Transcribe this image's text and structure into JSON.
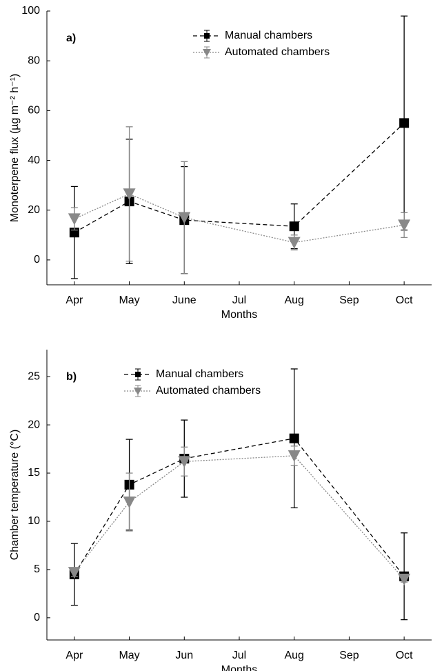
{
  "chart_data": [
    {
      "type": "line",
      "panel_label": "a)",
      "xlabel": "Months",
      "ylabel": "Monoterpene flux (µg m⁻² h⁻¹)",
      "x": [
        4,
        5,
        6,
        8,
        10
      ],
      "xlim": [
        3.5,
        10.5
      ],
      "xticks": [
        {
          "value": 4,
          "label": "Apr"
        },
        {
          "value": 5,
          "label": "May"
        },
        {
          "value": 6,
          "label": "June"
        },
        {
          "value": 7,
          "label": "Jul"
        },
        {
          "value": 8,
          "label": "Aug"
        },
        {
          "value": 9,
          "label": "Sep"
        },
        {
          "value": 10,
          "label": "Oct"
        }
      ],
      "ylim": [
        -10,
        100
      ],
      "yticks": [
        0,
        20,
        40,
        60,
        80,
        100
      ],
      "legend": "upper center",
      "series": [
        {
          "name": "Manual chambers",
          "color": "#000000",
          "linestyle": "dashed",
          "marker": "square",
          "values": [
            11,
            23.5,
            16,
            13.5,
            55
          ],
          "errors": [
            18.5,
            25,
            21.5,
            9,
            43
          ]
        },
        {
          "name": "Automated chambers",
          "color": "#888888",
          "linestyle": "dotted",
          "marker": "triangle-down",
          "values": [
            16.5,
            26.5,
            17,
            7,
            14
          ],
          "errors": [
            4.5,
            27,
            22.5,
            3,
            5
          ]
        }
      ]
    },
    {
      "type": "line",
      "panel_label": "b)",
      "xlabel": "Months",
      "ylabel": "Chamber temperature (°C)",
      "x": [
        4,
        5,
        6,
        8,
        10
      ],
      "xlim": [
        3.5,
        10.5
      ],
      "xticks": [
        {
          "value": 4,
          "label": "Apr"
        },
        {
          "value": 5,
          "label": "May"
        },
        {
          "value": 6,
          "label": "Jun"
        },
        {
          "value": 7,
          "label": "Jul"
        },
        {
          "value": 8,
          "label": "Aug"
        },
        {
          "value": 9,
          "label": "Sep"
        },
        {
          "value": 10,
          "label": "Oct"
        }
      ],
      "ylim": [
        -2.3,
        27.8
      ],
      "yticks": [
        0,
        5,
        10,
        15,
        20,
        25
      ],
      "legend": "upper left",
      "series": [
        {
          "name": "Manual chambers",
          "color": "#000000",
          "linestyle": "dashed",
          "marker": "square",
          "values": [
            4.5,
            13.8,
            16.5,
            18.6,
            4.3
          ],
          "errors": [
            3.2,
            4.7,
            4,
            7.2,
            4.5
          ]
        },
        {
          "name": "Automated chambers",
          "color": "#888888",
          "linestyle": "dotted",
          "marker": "triangle-down",
          "values": [
            4.7,
            12,
            16.2,
            16.8,
            4
          ],
          "errors": [
            0.4,
            3,
            1.5,
            1,
            0.3
          ]
        }
      ]
    }
  ]
}
